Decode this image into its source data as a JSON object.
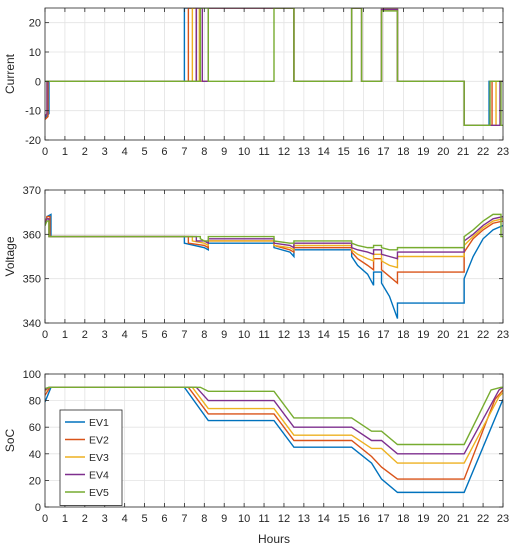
{
  "chart_data": [
    {
      "type": "line",
      "ylabel": "Current",
      "xlabel": "",
      "xlim": [
        0,
        23
      ],
      "ylim": [
        -20,
        25
      ],
      "xticks": [
        0,
        1,
        2,
        3,
        4,
        5,
        6,
        7,
        8,
        9,
        10,
        11,
        12,
        13,
        14,
        15,
        16,
        17,
        18,
        19,
        20,
        21,
        22,
        23
      ],
      "yticks": [
        -20,
        -10,
        0,
        10,
        20
      ],
      "grid": true,
      "series": [
        {
          "name": "EV1",
          "color": "#0072BD",
          "x": [
            0,
            0.2,
            0.2,
            7.0,
            7.0,
            7.6,
            7.6,
            8.2,
            8.2,
            11.5,
            11.5,
            12.5,
            12.5,
            15.4,
            15.4,
            15.9,
            15.9,
            16.9,
            16.9,
            17.7,
            17.7,
            21.05,
            21.05,
            22.3,
            22.3,
            23
          ],
          "y": [
            -12.5,
            -11,
            0,
            0,
            25,
            25,
            0,
            0,
            25,
            25,
            25,
            25,
            0,
            0,
            25,
            25,
            0,
            0,
            24.5,
            24.5,
            0,
            0,
            -15,
            -15,
            0,
            0
          ]
        },
        {
          "name": "EV2",
          "color": "#D95319",
          "x": [
            0,
            0.15,
            0.15,
            7.2,
            7.2,
            7.6,
            7.6,
            8.2,
            8.2,
            11.5,
            11.5,
            12.5,
            12.5,
            15.4,
            15.4,
            15.9,
            15.9,
            16.9,
            16.9,
            17.7,
            17.7,
            21.05,
            21.05,
            22.45,
            22.45,
            23
          ],
          "y": [
            -13,
            -12,
            0,
            0,
            25,
            25,
            0,
            0,
            25,
            25,
            25,
            25,
            0,
            0,
            25,
            25,
            0,
            0,
            24.5,
            24.5,
            0,
            0,
            -15,
            -15,
            0,
            0
          ]
        },
        {
          "name": "EV3",
          "color": "#EDB120",
          "x": [
            0,
            0.1,
            0.1,
            7.4,
            7.4,
            7.75,
            7.75,
            8.2,
            8.2,
            11.5,
            11.5,
            12.5,
            12.5,
            15.4,
            15.4,
            15.9,
            15.9,
            16.9,
            16.9,
            17.7,
            17.7,
            21.05,
            21.05,
            22.65,
            22.65,
            23
          ],
          "y": [
            -12,
            -11,
            0,
            0,
            25,
            25,
            0,
            0,
            25,
            25,
            25,
            25,
            0,
            0,
            25,
            25,
            0,
            0,
            24.5,
            24.5,
            0,
            0,
            -15,
            -15,
            0,
            0
          ]
        },
        {
          "name": "EV4",
          "color": "#7E2F8E",
          "x": [
            0,
            0.1,
            0.1,
            7.6,
            7.6,
            7.9,
            7.9,
            8.2,
            8.2,
            11.5,
            11.5,
            12.5,
            12.5,
            15.4,
            15.4,
            15.9,
            15.9,
            16.9,
            16.9,
            17.7,
            17.7,
            21.05,
            21.05,
            22.85,
            22.85,
            23
          ],
          "y": [
            -12,
            -11,
            0,
            0,
            25,
            25,
            0,
            0,
            25,
            25,
            25,
            25,
            0,
            0,
            25,
            25,
            0,
            0,
            24.5,
            24.5,
            0,
            0,
            -15,
            -15,
            0,
            0
          ]
        },
        {
          "name": "EV5",
          "color": "#77AC30",
          "x": [
            0,
            0.1,
            0.1,
            7.8,
            7.8,
            8.2,
            8.2,
            11.5,
            11.5,
            12.5,
            12.5,
            15.4,
            15.4,
            15.9,
            15.9,
            16.9,
            16.9,
            17.7,
            17.7,
            21.05,
            21.05,
            22.35,
            22.35,
            22.9,
            22.9,
            23
          ],
          "y": [
            0,
            0,
            0,
            0,
            25,
            25,
            0,
            0,
            25,
            25,
            0,
            0,
            25,
            25,
            0,
            0,
            24,
            24,
            0,
            0,
            -15,
            -15,
            0,
            0,
            -15,
            -15
          ]
        }
      ]
    },
    {
      "type": "line",
      "ylabel": "Voltage",
      "xlabel": "",
      "xlim": [
        0,
        23
      ],
      "ylim": [
        340,
        370
      ],
      "xticks": [
        0,
        1,
        2,
        3,
        4,
        5,
        6,
        7,
        8,
        9,
        10,
        11,
        12,
        13,
        14,
        15,
        16,
        17,
        18,
        19,
        20,
        21,
        22,
        23
      ],
      "yticks": [
        340,
        350,
        360,
        370
      ],
      "grid": true,
      "series": [
        {
          "name": "EV1",
          "color": "#0072BD",
          "x": [
            0,
            0.1,
            0.3,
            0.3,
            7.0,
            7.0,
            8.0,
            8.2,
            8.2,
            11.5,
            11.5,
            12.3,
            12.5,
            12.5,
            15.4,
            15.4,
            15.7,
            16.2,
            16.5,
            16.5,
            16.9,
            16.9,
            17.3,
            17.7,
            17.7,
            21.05,
            21.05,
            21.5,
            22.0,
            22.5,
            23
          ],
          "y": [
            362,
            364,
            364.5,
            359.5,
            359.5,
            358,
            357,
            356.5,
            358,
            358,
            357,
            356,
            355,
            356.5,
            356.5,
            355,
            353,
            351,
            348.5,
            351.5,
            351.5,
            349,
            346,
            341,
            344.5,
            344.5,
            350,
            355,
            359,
            361,
            362
          ]
        },
        {
          "name": "EV2",
          "color": "#D95319",
          "x": [
            0,
            0.1,
            0.25,
            0.25,
            7.2,
            7.2,
            8.0,
            8.2,
            8.2,
            11.5,
            11.5,
            12.3,
            12.5,
            12.5,
            15.4,
            15.4,
            15.7,
            16.2,
            16.5,
            16.5,
            16.9,
            16.9,
            17.3,
            17.7,
            17.7,
            21.05,
            21.05,
            21.5,
            22.0,
            22.5,
            23
          ],
          "y": [
            362,
            364,
            364,
            359.5,
            359.5,
            358,
            357.5,
            357,
            358.5,
            358.5,
            357.5,
            356.5,
            356,
            357,
            357,
            356,
            354.5,
            353,
            352,
            354.5,
            354.5,
            352,
            350.5,
            349,
            351.5,
            351.5,
            356,
            359,
            361,
            362.5,
            363
          ]
        },
        {
          "name": "EV3",
          "color": "#EDB120",
          "x": [
            0,
            0.1,
            0.2,
            0.2,
            7.4,
            7.4,
            8.0,
            8.2,
            8.2,
            11.5,
            11.5,
            12.3,
            12.5,
            12.5,
            15.4,
            15.4,
            15.7,
            16.2,
            16.5,
            16.5,
            16.9,
            16.9,
            17.3,
            17.7,
            17.7,
            21.05,
            21.05,
            21.5,
            22.0,
            22.5,
            23
          ],
          "y": [
            362,
            363.5,
            363.5,
            359.5,
            359.5,
            358.5,
            358,
            357.5,
            358.5,
            358.5,
            357.5,
            357,
            356.5,
            357.5,
            357.5,
            356.5,
            355.5,
            354.5,
            354,
            355.5,
            355.5,
            354,
            353,
            352.5,
            355,
            355,
            357.5,
            359.5,
            361.5,
            363,
            363.5
          ]
        },
        {
          "name": "EV4",
          "color": "#7E2F8E",
          "x": [
            0,
            0.1,
            0.2,
            0.2,
            7.6,
            7.6,
            8.0,
            8.2,
            8.2,
            11.5,
            11.5,
            12.3,
            12.5,
            12.5,
            15.4,
            15.4,
            15.7,
            16.2,
            16.5,
            16.5,
            16.9,
            16.9,
            17.3,
            17.7,
            17.7,
            21.05,
            21.05,
            21.5,
            22.0,
            22.5,
            23
          ],
          "y": [
            362,
            363.5,
            363.5,
            359.5,
            359.5,
            358.5,
            358.5,
            358,
            359,
            359,
            358,
            357.5,
            357,
            358,
            358,
            357,
            356.5,
            356,
            355.5,
            356.5,
            356.5,
            355.5,
            355,
            354.5,
            356,
            356,
            358.5,
            360,
            362,
            363.5,
            364
          ]
        },
        {
          "name": "EV5",
          "color": "#77AC30",
          "x": [
            0,
            0.1,
            0.2,
            0.2,
            7.8,
            7.8,
            8.0,
            8.2,
            8.2,
            11.5,
            11.5,
            12.3,
            12.5,
            12.5,
            15.4,
            15.4,
            15.7,
            16.2,
            16.5,
            16.5,
            16.9,
            16.9,
            17.3,
            17.7,
            17.7,
            21.05,
            21.05,
            21.5,
            22.0,
            22.5,
            22.9,
            22.9,
            23
          ],
          "y": [
            362,
            363,
            363,
            359.5,
            359.5,
            359,
            358.5,
            358.5,
            359.5,
            359.5,
            358.5,
            358,
            358,
            358.5,
            358.5,
            358,
            357.5,
            357,
            357,
            357.5,
            357.5,
            357,
            356.5,
            356.5,
            357,
            357,
            359.5,
            361,
            363,
            364.5,
            364.5,
            359.5,
            359.5
          ]
        }
      ]
    },
    {
      "type": "line",
      "ylabel": "SoC",
      "xlabel": "Hours",
      "xlim": [
        0,
        23
      ],
      "ylim": [
        0,
        100
      ],
      "xticks": [
        0,
        1,
        2,
        3,
        4,
        5,
        6,
        7,
        8,
        9,
        10,
        11,
        12,
        13,
        14,
        15,
        16,
        17,
        18,
        19,
        20,
        21,
        22,
        23
      ],
      "yticks": [
        0,
        20,
        40,
        60,
        80,
        100
      ],
      "grid": true,
      "legend": {
        "position": "lower-left",
        "entries": [
          "EV1",
          "EV2",
          "EV3",
          "EV4",
          "EV5"
        ]
      },
      "series": [
        {
          "name": "EV1",
          "color": "#0072BD",
          "x": [
            0,
            0.3,
            7.0,
            8.2,
            11.5,
            12.5,
            15.4,
            16.4,
            16.9,
            17.7,
            21.05,
            23
          ],
          "y": [
            79,
            90,
            90,
            65,
            65,
            45,
            45,
            33,
            21,
            11,
            11,
            81
          ]
        },
        {
          "name": "EV2",
          "color": "#D95319",
          "x": [
            0,
            0.25,
            7.2,
            8.2,
            11.5,
            12.5,
            15.4,
            16.4,
            16.9,
            17.7,
            21.05,
            22.6,
            23
          ],
          "y": [
            84,
            90,
            90,
            70,
            70,
            50,
            50,
            38,
            30,
            21,
            21,
            81,
            88
          ]
        },
        {
          "name": "EV3",
          "color": "#EDB120",
          "x": [
            0,
            0.2,
            7.4,
            8.2,
            11.5,
            12.5,
            15.4,
            16.4,
            16.9,
            17.7,
            21.05,
            22.8,
            23
          ],
          "y": [
            87,
            90,
            90,
            74,
            74,
            54,
            54,
            44,
            44,
            33,
            33,
            83,
            86
          ]
        },
        {
          "name": "EV4",
          "color": "#7E2F8E",
          "x": [
            0,
            0.2,
            7.6,
            8.2,
            11.5,
            12.5,
            15.4,
            16.4,
            16.9,
            17.7,
            21.05,
            22.8,
            23
          ],
          "y": [
            88,
            90,
            90,
            80,
            80,
            60,
            60,
            50,
            50,
            40,
            40,
            88,
            90
          ]
        },
        {
          "name": "EV5",
          "color": "#77AC30",
          "x": [
            0,
            0.2,
            7.8,
            8.2,
            11.5,
            12.5,
            15.4,
            16.4,
            16.9,
            17.7,
            21.05,
            22.4,
            22.9,
            23
          ],
          "y": [
            89,
            90,
            90,
            87,
            87,
            67,
            67,
            57,
            57,
            47,
            47,
            88,
            90,
            90
          ]
        }
      ]
    }
  ]
}
